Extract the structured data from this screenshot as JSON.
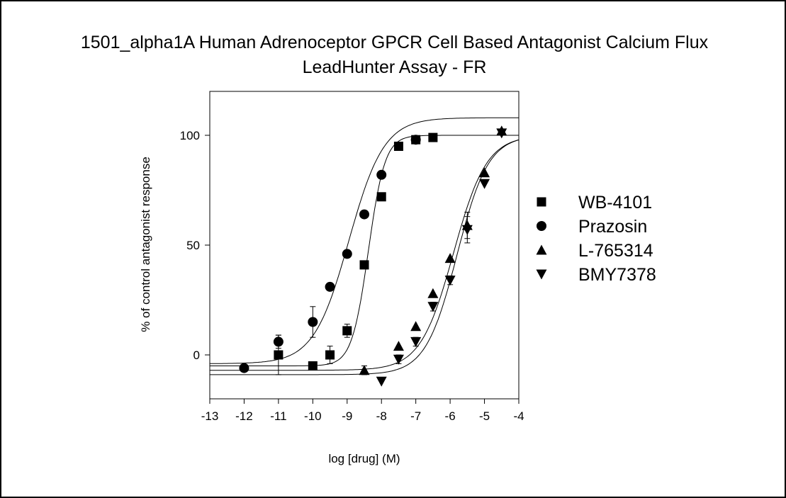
{
  "chart_data": {
    "type": "scatter",
    "title_line1": "1501_alpha1A Human Adrenoceptor GPCR Cell Based Antagonist Calcium Flux",
    "title_line2": "LeadHunter Assay - FR",
    "xlabel": "log [drug] (M)",
    "ylabel": "% of control antagonist response",
    "xlim": [
      -13,
      -4
    ],
    "ylim": [
      -20,
      120
    ],
    "xticks": [
      -13,
      -12,
      -11,
      -10,
      -9,
      -8,
      -7,
      -6,
      -5,
      -4
    ],
    "xtick_labels": [
      "-13",
      "-12",
      "-11",
      "-10",
      "-9",
      "-8",
      "-7",
      "-6",
      "-5",
      "-4"
    ],
    "yticks": [
      0,
      50,
      100
    ],
    "ytick_labels": [
      "0",
      "50",
      "100"
    ],
    "legend_position": "right",
    "series": [
      {
        "name": "WB-4101",
        "marker": "square",
        "points": [
          {
            "x": -11,
            "y": 0,
            "err": 9
          },
          {
            "x": -10,
            "y": -5,
            "err": 1
          },
          {
            "x": -9.5,
            "y": 0,
            "err": 4
          },
          {
            "x": -9,
            "y": 11,
            "err": 3
          },
          {
            "x": -8.5,
            "y": 41,
            "err": 1
          },
          {
            "x": -8,
            "y": 72,
            "err": 1
          },
          {
            "x": -7.5,
            "y": 95,
            "err": 1
          },
          {
            "x": -7,
            "y": 98,
            "err": 1
          },
          {
            "x": -6.5,
            "y": 99,
            "err": 1
          }
        ],
        "fit": {
          "bottom": -5,
          "top": 100,
          "logEC50": -8.38,
          "hill": 1.8
        }
      },
      {
        "name": "Prazosin",
        "marker": "circle",
        "points": [
          {
            "x": -12,
            "y": -6,
            "err": 1
          },
          {
            "x": -11,
            "y": 6,
            "err": 3
          },
          {
            "x": -10,
            "y": 15,
            "err": 7
          },
          {
            "x": -9.5,
            "y": 31,
            "err": 1
          },
          {
            "x": -9,
            "y": 46,
            "err": 1
          },
          {
            "x": -8.5,
            "y": 64,
            "err": 1
          },
          {
            "x": -8,
            "y": 82,
            "err": 1
          },
          {
            "x": -7,
            "y": 98,
            "err": 1
          }
        ],
        "fit": {
          "bottom": -4,
          "top": 108,
          "logEC50": -8.95,
          "hill": 0.85
        }
      },
      {
        "name": "L-765314",
        "marker": "triangle-up",
        "points": [
          {
            "x": -8.5,
            "y": -7,
            "err": 2
          },
          {
            "x": -7.5,
            "y": 4,
            "err": 1
          },
          {
            "x": -7,
            "y": 13,
            "err": 1
          },
          {
            "x": -6.5,
            "y": 28,
            "err": 1
          },
          {
            "x": -6,
            "y": 44,
            "err": 1
          },
          {
            "x": -5.5,
            "y": 59,
            "err": 6
          },
          {
            "x": -5,
            "y": 83,
            "err": 1
          },
          {
            "x": -4.5,
            "y": 102,
            "err": 1
          }
        ],
        "fit": {
          "bottom": -7,
          "top": 100,
          "logEC50": -5.9,
          "hill": 0.9
        }
      },
      {
        "name": "BMY7378",
        "marker": "triangle-down",
        "points": [
          {
            "x": -8,
            "y": -12,
            "err": 1
          },
          {
            "x": -7.5,
            "y": -2,
            "err": 2
          },
          {
            "x": -7,
            "y": 6,
            "err": 2
          },
          {
            "x": -6.5,
            "y": 22,
            "err": 2
          },
          {
            "x": -6,
            "y": 34,
            "err": 2
          },
          {
            "x": -5.5,
            "y": 57,
            "err": 6
          },
          {
            "x": -5,
            "y": 78,
            "err": 1
          },
          {
            "x": -4.5,
            "y": 101,
            "err": 1
          }
        ],
        "fit": {
          "bottom": -9,
          "top": 100,
          "logEC50": -5.8,
          "hill": 0.95
        }
      }
    ],
    "colors": {
      "ink": "#000000",
      "background": "#ffffff"
    }
  }
}
